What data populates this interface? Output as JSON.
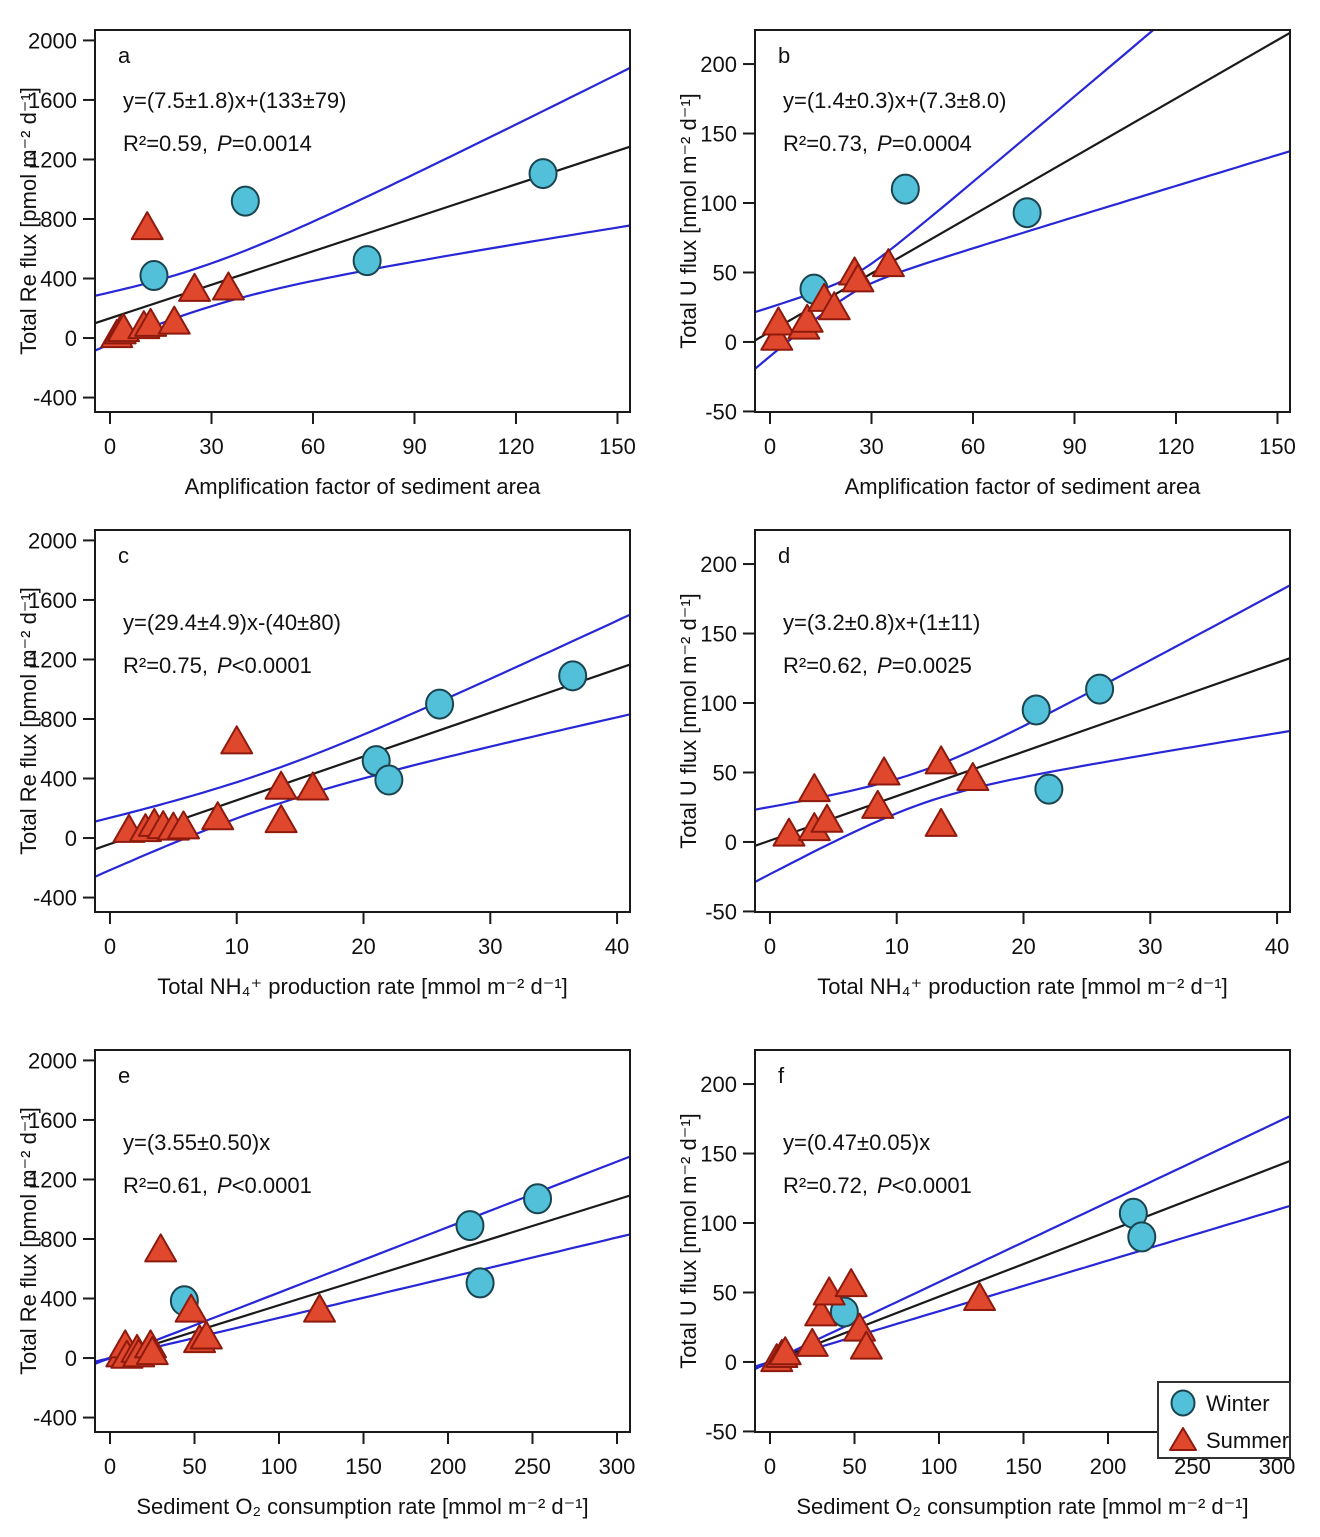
{
  "figure": {
    "background": "#ffffff"
  },
  "colors": {
    "winter_fill": "#53c0d9",
    "winter_edge": "#1a4550",
    "summer_fill": "#e0482e",
    "summer_edge": "#8e1a0d",
    "fit_line": "#1a1a1a",
    "ci_line": "#2727d8",
    "frame": "#1a1a1a"
  },
  "legend": {
    "items": [
      {
        "label": "Winter",
        "marker": "circle"
      },
      {
        "label": "Summer",
        "marker": "triangle"
      }
    ]
  },
  "chart_data": [
    {
      "id": "a",
      "type": "scatter",
      "title_letter": "a",
      "equation": "y=(7.5±1.8)x+(133±79)",
      "stats": {
        "r2": "R²=0.59,",
        "p": "P",
        "pv": "=0.0014"
      },
      "xlabel": "Amplification factor of sediment area",
      "ylabel": "Total Re flux [pmol m⁻² d⁻¹]",
      "xlim": [
        -4.43,
        153.7
      ],
      "ylim": [
        -497,
        2070
      ],
      "xticks": [
        0,
        30,
        60,
        90,
        120,
        150
      ],
      "yticks": [
        -400,
        0,
        400,
        800,
        1200,
        1600,
        2000
      ],
      "fit": {
        "slope": 7.5,
        "intercept": 133
      },
      "ci": {
        "kind": "hyperbolic",
        "t": 2.2,
        "h0sq": 4216,
        "bsq": 3.24,
        "xbar": 25
      },
      "series": [
        {
          "name": "Winter",
          "marker": "circle",
          "points": [
            [
              13,
              420
            ],
            [
              40,
              920
            ],
            [
              76,
              520
            ],
            [
              128,
              1105
            ]
          ]
        },
        {
          "name": "Summer",
          "marker": "triangle",
          "points": [
            [
              2,
              20
            ],
            [
              3,
              45
            ],
            [
              4,
              60
            ],
            [
              10,
              80
            ],
            [
              11,
              745
            ],
            [
              12,
              95
            ],
            [
              19,
              110
            ],
            [
              25,
              330
            ],
            [
              35,
              340
            ]
          ]
        }
      ]
    },
    {
      "id": "b",
      "type": "scatter",
      "title_letter": "b",
      "equation": "y=(1.4±0.3)x+(7.3±8.0)",
      "stats": {
        "r2": "R²=0.73,",
        "p": "P",
        "pv": "=0.0004"
      },
      "xlabel": "Amplification factor of sediment area",
      "ylabel": "Total U flux [nmol m⁻² d⁻¹]",
      "xlim": [
        -4.43,
        153.7
      ],
      "ylim": [
        -50.4,
        224.5
      ],
      "xticks": [
        0,
        30,
        60,
        90,
        120,
        150
      ],
      "yticks": [
        -50,
        0,
        50,
        100,
        150,
        200
      ],
      "fit": {
        "slope": 1.4,
        "intercept": 7.3
      },
      "ci": {
        "kind": "hyperbolic",
        "t": 2.2,
        "h0sq": 8,
        "bsq": 0.09,
        "xbar": 25
      },
      "series": [
        {
          "name": "Winter",
          "marker": "circle",
          "points": [
            [
              13,
              38
            ],
            [
              40,
              110
            ],
            [
              76,
              93
            ]
          ]
        },
        {
          "name": "Summer",
          "marker": "triangle",
          "points": [
            [
              2,
              3
            ],
            [
              2.5,
              14
            ],
            [
              10,
              11
            ],
            [
              11,
              16
            ],
            [
              16,
              31
            ],
            [
              19,
              25
            ],
            [
              25,
              50
            ],
            [
              26,
              45
            ],
            [
              35,
              56
            ]
          ]
        }
      ]
    },
    {
      "id": "c",
      "type": "scatter",
      "title_letter": "c",
      "equation": "y=(29.4±4.9)x-(40±80)",
      "stats": {
        "r2": "R²=0.75,",
        "p": "P",
        "pv": "<0.0001"
      },
      "xlabel": "Total NH₄⁺ production rate [mmol m⁻² d⁻¹]",
      "ylabel": "Total Re flux [pmol m⁻² d⁻¹]",
      "xlim": [
        -1.18,
        41.02
      ],
      "ylim": [
        -497,
        2070
      ],
      "xticks": [
        0,
        10,
        20,
        30,
        40
      ],
      "yticks": [
        -400,
        0,
        400,
        800,
        1200,
        1600,
        2000
      ],
      "fit": {
        "slope": 29.4,
        "intercept": -40
      },
      "ci": {
        "kind": "hyperbolic",
        "t": 2.2,
        "h0sq": 2944,
        "bsq": 24,
        "xbar": 12
      },
      "series": [
        {
          "name": "Winter",
          "marker": "circle",
          "points": [
            [
              21,
              520
            ],
            [
              22,
              390
            ],
            [
              26,
              900
            ],
            [
              36.5,
              1090
            ]
          ]
        },
        {
          "name": "Summer",
          "marker": "triangle",
          "points": [
            [
              1.5,
              55
            ],
            [
              2.8,
              60
            ],
            [
              3.5,
              95
            ],
            [
              4.2,
              80
            ],
            [
              5,
              70
            ],
            [
              5.8,
              78
            ],
            [
              8.5,
              140
            ],
            [
              10,
              650
            ],
            [
              13.5,
              345
            ],
            [
              13.5,
              120
            ],
            [
              16,
              340
            ]
          ]
        }
      ]
    },
    {
      "id": "d",
      "type": "scatter",
      "title_letter": "d",
      "equation": "y=(3.2±0.8)x+(1±11)",
      "stats": {
        "r2": "R²=0.62,",
        "p": "P",
        "pv": "=0.0025"
      },
      "xlabel": "Total NH₄⁺ production rate [mmol m⁻² d⁻¹]",
      "ylabel": "Total U flux [nmol m⁻² d⁻¹]",
      "xlim": [
        -1.18,
        41.02
      ],
      "ylim": [
        -50.4,
        224.5
      ],
      "xticks": [
        0,
        10,
        20,
        30,
        40
      ],
      "yticks": [
        -50,
        0,
        50,
        100,
        150,
        200
      ],
      "fit": {
        "slope": 3.2,
        "intercept": 1
      },
      "ci": {
        "kind": "hyperbolic",
        "t": 2.2,
        "h0sq": 28.8,
        "bsq": 0.64,
        "xbar": 12
      },
      "series": [
        {
          "name": "Winter",
          "marker": "circle",
          "points": [
            [
              21,
              95
            ],
            [
              22,
              38
            ],
            [
              26,
              110
            ]
          ]
        },
        {
          "name": "Summer",
          "marker": "triangle",
          "points": [
            [
              1.5,
              6
            ],
            [
              3.5,
              38
            ],
            [
              3.5,
              10
            ],
            [
              4.5,
              16
            ],
            [
              8.5,
              26
            ],
            [
              9,
              50
            ],
            [
              13.5,
              58
            ],
            [
              13.5,
              13
            ],
            [
              16,
              46
            ]
          ]
        }
      ]
    },
    {
      "id": "e",
      "type": "scatter",
      "title_letter": "e",
      "equation": "y=(3.55±0.50)x",
      "stats": {
        "r2": "R²=0.61,",
        "p": "P",
        "pv": "<0.0001"
      },
      "xlabel": "Sediment O₂ consumption rate [mmol m⁻² d⁻¹]",
      "ylabel": "Total Re flux [pmol m⁻² d⁻¹]",
      "xlim": [
        -8.88,
        307.7
      ],
      "ylim": [
        -497,
        2070
      ],
      "xticks": [
        0,
        50,
        100,
        150,
        200,
        250,
        300
      ],
      "yticks": [
        -400,
        0,
        400,
        800,
        1200,
        1600,
        2000
      ],
      "fit": {
        "slope": 3.55,
        "intercept": 0
      },
      "ci": {
        "kind": "proportional",
        "k": 0.85
      },
      "series": [
        {
          "name": "Winter",
          "marker": "circle",
          "points": [
            [
              44,
              385
            ],
            [
              213,
              890
            ],
            [
              219,
              505
            ],
            [
              253,
              1070
            ]
          ]
        },
        {
          "name": "Summer",
          "marker": "triangle",
          "points": [
            [
              7,
              25
            ],
            [
              9,
              85
            ],
            [
              10,
              15
            ],
            [
              16,
              55
            ],
            [
              17,
              25
            ],
            [
              24,
              85
            ],
            [
              25,
              40
            ],
            [
              30,
              730
            ],
            [
              48,
              325
            ],
            [
              53,
              120
            ],
            [
              57,
              145
            ],
            [
              124,
              325
            ]
          ]
        }
      ]
    },
    {
      "id": "f",
      "type": "scatter",
      "title_letter": "f",
      "equation": "y=(0.47±0.05)x",
      "stats": {
        "r2": "R²=0.72,",
        "p": "P",
        "pv": "<0.0001"
      },
      "xlabel": "Sediment O₂ consumption rate [mmol m⁻² d⁻¹]",
      "ylabel": "Total U flux [nmol m⁻² d⁻¹]",
      "xlim": [
        -8.88,
        307.7
      ],
      "ylim": [
        -50.4,
        224.5
      ],
      "xticks": [
        0,
        50,
        100,
        150,
        200,
        250,
        300
      ],
      "yticks": [
        -50,
        0,
        50,
        100,
        150,
        200
      ],
      "fit": {
        "slope": 0.47,
        "intercept": 0
      },
      "ci": {
        "kind": "proportional",
        "k": 0.105
      },
      "series": [
        {
          "name": "Winter",
          "marker": "circle",
          "points": [
            [
              44,
              36
            ],
            [
              215,
              107
            ],
            [
              220,
              90
            ]
          ]
        },
        {
          "name": "Summer",
          "marker": "triangle",
          "points": [
            [
              4,
              2
            ],
            [
              7,
              5
            ],
            [
              9,
              7
            ],
            [
              25,
              13
            ],
            [
              30,
              35
            ],
            [
              35,
              50
            ],
            [
              48,
              56
            ],
            [
              53,
              24
            ],
            [
              57,
              11
            ],
            [
              124,
              46
            ]
          ]
        }
      ]
    }
  ]
}
